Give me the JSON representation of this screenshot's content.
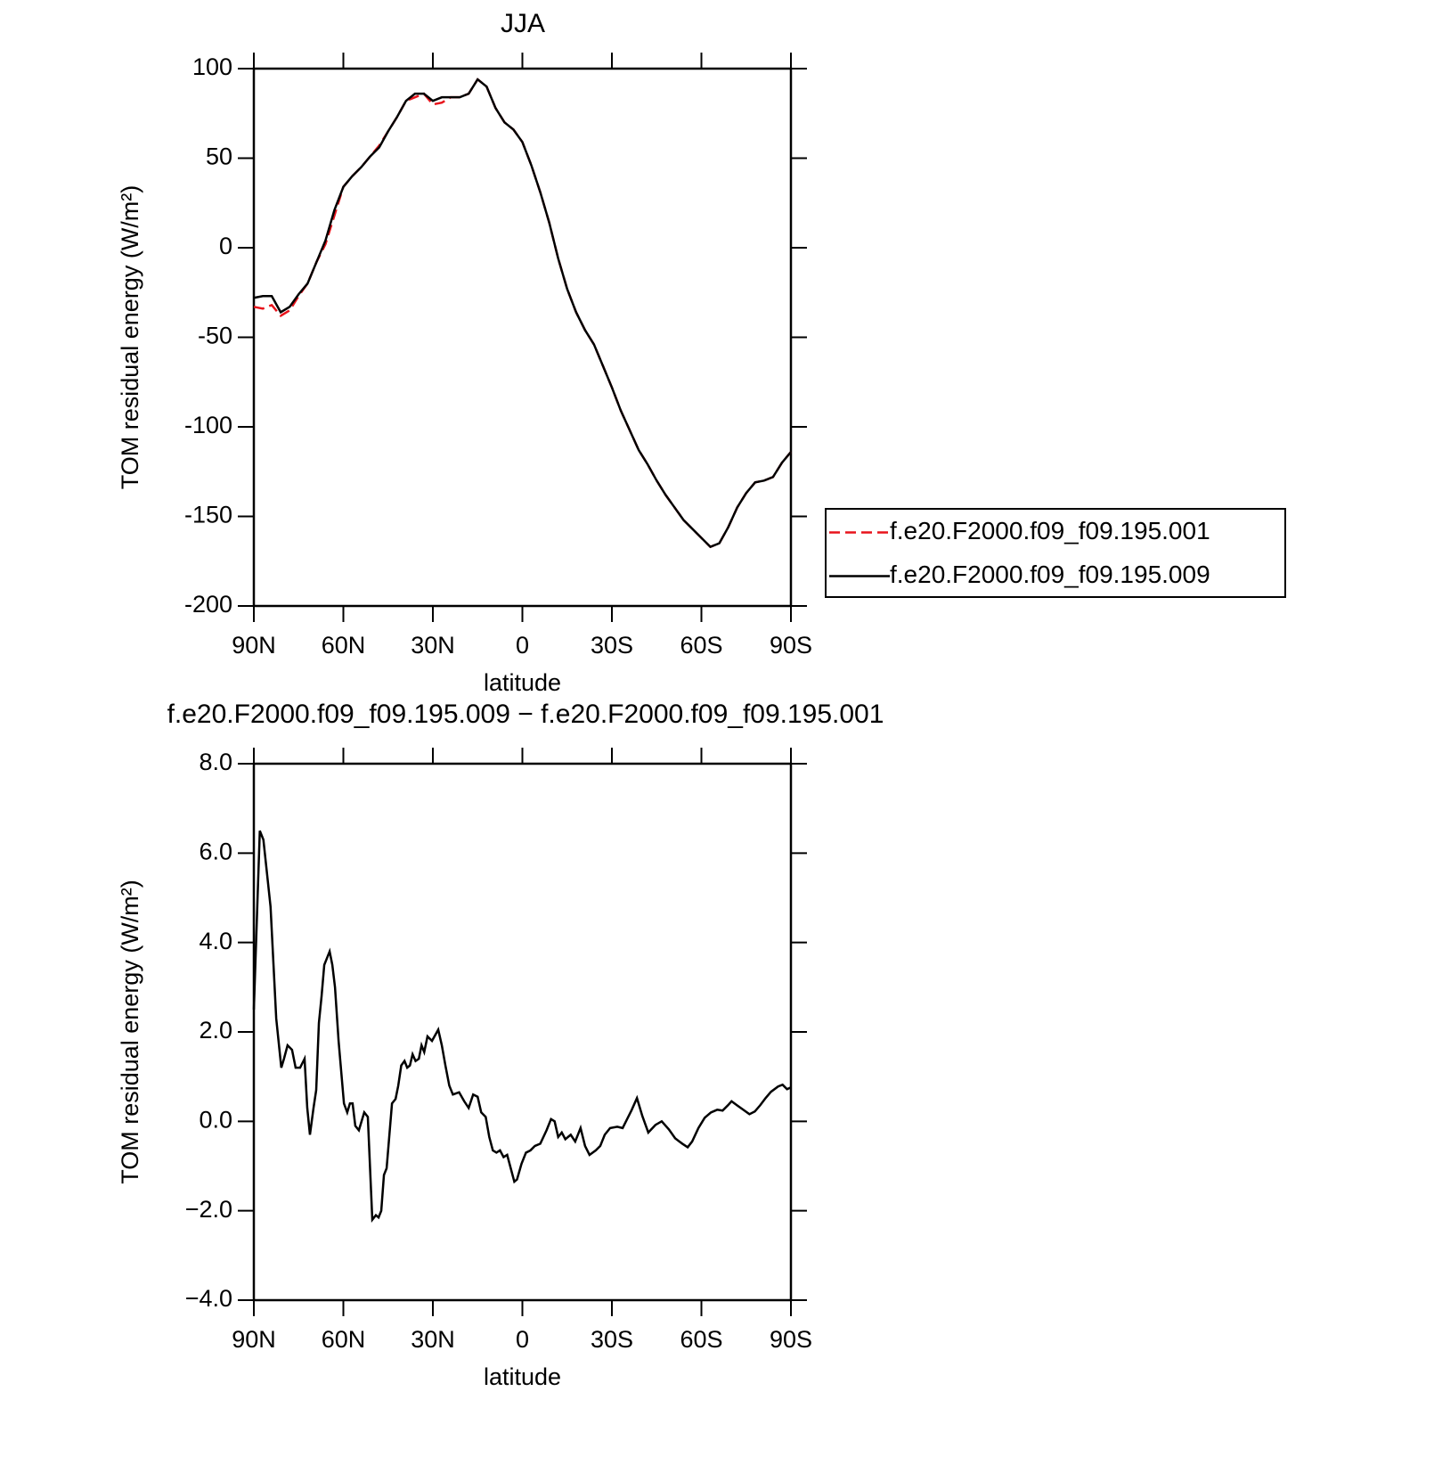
{
  "chart_data": [
    {
      "type": "line",
      "title": "JJA",
      "ylabel": "TOM residual energy (W/m²)",
      "xlabel": "latitude",
      "x": [
        90,
        87,
        84,
        81,
        78,
        75,
        72,
        69,
        66,
        63,
        60,
        57,
        54,
        51,
        48,
        45,
        42,
        39,
        36,
        33,
        30,
        27,
        24,
        21,
        18,
        15,
        12,
        9,
        6,
        3,
        0,
        -3,
        -6,
        -9,
        -12,
        -15,
        -18,
        -21,
        -24,
        -27,
        -30,
        -33,
        -36,
        -39,
        -42,
        -45,
        -48,
        -51,
        -54,
        -57,
        -60,
        -63,
        -66,
        -69,
        -72,
        -75,
        -78,
        -81,
        -84,
        -87,
        -90
      ],
      "series": [
        {
          "name": "f.e20.F2000.f09_f09.195.001",
          "color": "#e8141c",
          "dashed": true,
          "values": [
            -33,
            -34,
            -32,
            -38,
            -35,
            -27,
            -20,
            -8,
            2,
            18,
            34,
            40,
            45,
            51,
            57,
            65,
            73,
            82,
            84,
            86,
            80,
            81,
            84,
            84,
            86,
            94,
            90,
            78,
            70,
            66,
            59,
            46,
            31,
            14,
            -6,
            -23,
            -36,
            -46,
            -54,
            -66,
            -78,
            -91,
            -102,
            -113,
            -121,
            -130,
            -138,
            -145,
            -152,
            -157,
            -162,
            -167,
            -165,
            -156,
            -145,
            -137,
            -131,
            -130,
            -128,
            -120,
            -114
          ]
        },
        {
          "name": "f.e20.F2000.f09_f09.195.009",
          "color": "#000000",
          "dashed": false,
          "values": [
            -28,
            -27,
            -27,
            -36,
            -33,
            -26,
            -20,
            -8,
            4,
            21,
            34,
            40,
            45,
            51,
            56,
            65,
            73,
            82,
            86,
            86,
            82,
            84,
            84,
            84,
            86,
            94,
            90,
            78,
            70,
            66,
            59,
            46,
            31,
            14,
            -6,
            -23,
            -36,
            -46,
            -54,
            -66,
            -78,
            -91,
            -102,
            -113,
            -121,
            -130,
            -138,
            -145,
            -152,
            -157,
            -162,
            -167,
            -165,
            -156,
            -145,
            -137,
            -131,
            -130,
            -128,
            -120,
            -114
          ]
        }
      ],
      "xlim": [
        90,
        -90
      ],
      "xticks": [
        {
          "value": 90,
          "label": "90N"
        },
        {
          "value": 60,
          "label": "60N"
        },
        {
          "value": 30,
          "label": "30N"
        },
        0,
        {
          "value": -30,
          "label": "30S"
        },
        {
          "value": -60,
          "label": "60S"
        },
        {
          "value": -90,
          "label": "90S"
        }
      ],
      "ylim": [
        -200,
        100
      ],
      "yticks": [
        -200,
        -150,
        -100,
        -50,
        0,
        50,
        100
      ],
      "legend": "right"
    },
    {
      "type": "line",
      "title": "f.e20.F2000.f09_f09.195.009 − f.e20.F2000.f09_f09.195.001",
      "ylabel": "TOM residual energy (W/m²)",
      "xlabel": "latitude",
      "x": [
        90,
        88,
        86.8,
        84.4,
        82.5,
        80.8,
        79.9,
        78.7,
        77.2,
        76,
        74.5,
        73,
        72.1,
        71.2,
        70,
        69.1,
        68.2,
        67.3,
        66.4,
        64.6,
        63.7,
        62.8,
        61.6,
        59.8,
        58.7,
        57.8,
        56.9,
        56,
        54.8,
        53,
        51.8,
        50.3,
        49.1,
        48.2,
        47.3,
        46.4,
        45.5,
        43.7,
        42.5,
        41.6,
        40.6,
        39.5,
        38.6,
        37.7,
        36.8,
        35.8,
        34.7,
        33.8,
        32.9,
        31.8,
        30.3,
        28.2,
        27,
        25.8,
        24.5,
        23.3,
        21.2,
        19.5,
        18,
        16.5,
        15,
        13.8,
        12.3,
        11.1,
        9.9,
        8.7,
        7.5,
        6.3,
        5.1,
        3.9,
        2.7,
        1.8,
        0.3,
        -1.2,
        -2.7,
        -4.2,
        -6,
        -8.1,
        -9.6,
        -10.8,
        -12,
        -13.2,
        -14.4,
        -16.2,
        -17.7,
        -19.5,
        -21,
        -22.5,
        -24.6,
        -26.1,
        -27.6,
        -29.4,
        -31.8,
        -33.6,
        -35.1,
        -36.6,
        -38.4,
        -40.2,
        -42.2,
        -44.6,
        -46.7,
        -49.1,
        -51.2,
        -53.6,
        -55.4,
        -56.9,
        -59,
        -61.1,
        -63.2,
        -65.3,
        -67.1,
        -68.9,
        -70.1,
        -71.9,
        -74,
        -76.1,
        -77.9,
        -79.7,
        -81.5,
        -83.3,
        -85.7,
        -87.2,
        -88.7,
        -90
      ],
      "values": [
        2.5,
        6.5,
        6.3,
        4.8,
        2.3,
        1.2,
        1.4,
        1.7,
        1.6,
        1.2,
        1.2,
        1.4,
        0.3,
        -0.3,
        0.3,
        0.7,
        2.2,
        2.8,
        3.5,
        3.8,
        3.5,
        3.0,
        1.8,
        0.4,
        0.2,
        0.4,
        0.4,
        -0.1,
        -0.2,
        0.2,
        0.1,
        -2.2,
        -2.1,
        -2.15,
        -2.0,
        -1.2,
        -1.05,
        0.4,
        0.5,
        0.8,
        1.25,
        1.35,
        1.2,
        1.25,
        1.5,
        1.35,
        1.4,
        1.7,
        1.55,
        1.9,
        1.8,
        2.05,
        1.7,
        1.25,
        0.8,
        0.6,
        0.65,
        0.45,
        0.3,
        0.6,
        0.55,
        0.2,
        0.1,
        -0.35,
        -0.65,
        -0.7,
        -0.65,
        -0.8,
        -0.75,
        -1.05,
        -1.35,
        -1.3,
        -0.95,
        -0.7,
        -0.65,
        -0.55,
        -0.5,
        -0.2,
        0.05,
        0,
        -0.35,
        -0.25,
        -0.4,
        -0.3,
        -0.45,
        -0.15,
        -0.55,
        -0.75,
        -0.65,
        -0.55,
        -0.3,
        -0.15,
        -0.12,
        -0.15,
        0.05,
        0.25,
        0.52,
        0.12,
        -0.25,
        -0.08,
        0,
        -0.18,
        -0.38,
        -0.5,
        -0.58,
        -0.45,
        -0.15,
        0.08,
        0.2,
        0.26,
        0.24,
        0.36,
        0.45,
        0.36,
        0.26,
        0.16,
        0.22,
        0.36,
        0.52,
        0.66,
        0.78,
        0.82,
        0.72,
        0.76
      ],
      "color": "#000000",
      "xlim": [
        90,
        -90
      ],
      "xticks": [
        {
          "value": 90,
          "label": "90N"
        },
        {
          "value": 60,
          "label": "60N"
        },
        {
          "value": 30,
          "label": "30N"
        },
        0,
        {
          "value": -30,
          "label": "30S"
        },
        {
          "value": -60,
          "label": "60S"
        },
        {
          "value": -90,
          "label": "90S"
        }
      ],
      "ylim": [
        -4,
        8
      ],
      "yticks": [
        {
          "value": -4,
          "label": "−4.0"
        },
        {
          "value": -2,
          "label": "−2.0"
        },
        {
          "value": 0,
          "label": "0.0"
        },
        {
          "value": 2,
          "label": "2.0"
        },
        {
          "value": 4,
          "label": "4.0"
        },
        {
          "value": 6,
          "label": "6.0"
        },
        {
          "value": 8,
          "label": "8.0"
        }
      ]
    }
  ]
}
